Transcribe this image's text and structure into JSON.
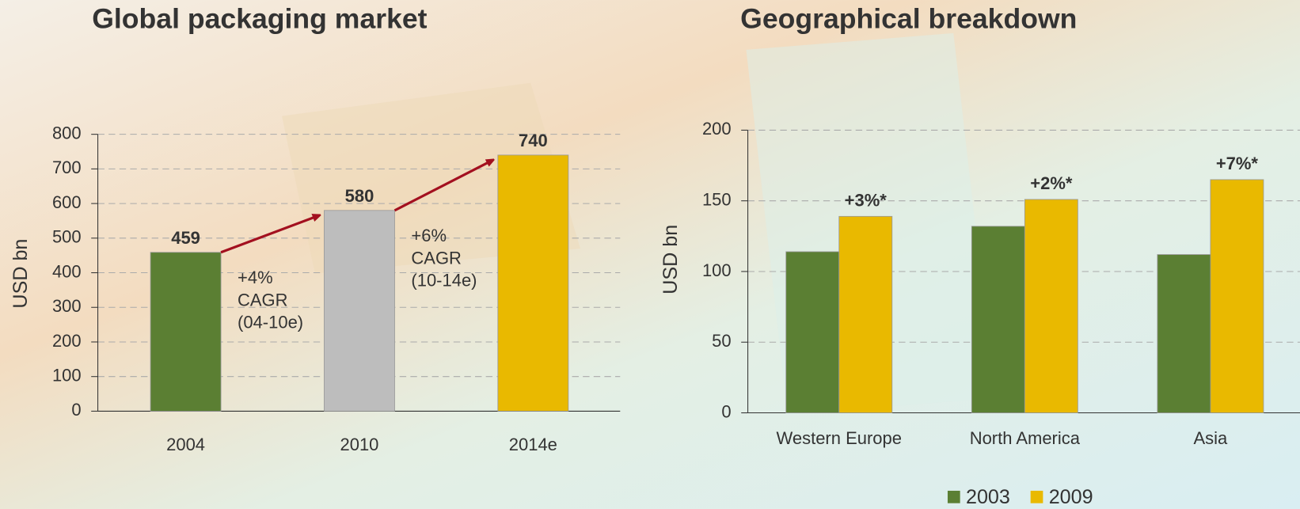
{
  "chart_data": [
    {
      "type": "bar",
      "title": "Global packaging market",
      "ylabel": "USD bn",
      "categories": [
        "2004",
        "2010",
        "2014e"
      ],
      "values": [
        459,
        580,
        740
      ],
      "colors": [
        "#5b7f33",
        "#bdbdbd",
        "#e9b900"
      ],
      "ylim": [
        0,
        800
      ],
      "yticks": [
        0,
        100,
        200,
        300,
        400,
        500,
        600,
        700,
        800
      ],
      "grid": true,
      "annotations": [
        [
          "+4%",
          "CAGR",
          "(04-10e)"
        ],
        [
          "+6%",
          "CAGR",
          "(10-14e)"
        ]
      ]
    },
    {
      "type": "grouped_bar",
      "title": "Geographical breakdown",
      "ylabel": "USD bn",
      "categories": [
        "Western Europe",
        "North America",
        "Asia"
      ],
      "series": [
        {
          "name": "2003",
          "color": "#5b7f33",
          "values": [
            114,
            132,
            112
          ]
        },
        {
          "name": "2009",
          "color": "#e9b900",
          "values": [
            139,
            151,
            165
          ]
        }
      ],
      "ylim": [
        0,
        200
      ],
      "yticks": [
        0,
        50,
        100,
        150,
        200
      ],
      "grid": true,
      "annotations": [
        "+3%*",
        "+2%*",
        "+7%*"
      ],
      "legend": "bottom"
    }
  ]
}
